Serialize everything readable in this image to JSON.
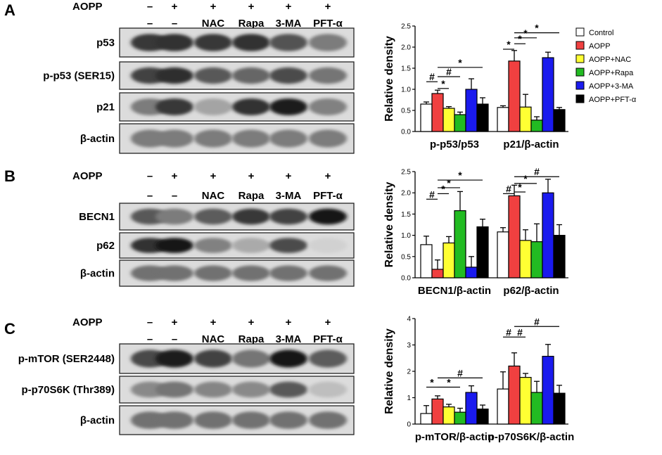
{
  "panels": [
    {
      "letter": "A",
      "treatment_label": "AOPP",
      "signs": [
        "–",
        "+",
        "+",
        "+",
        "+",
        "+"
      ],
      "subs": [
        "–",
        "–",
        "NAC",
        "Rapa",
        "3-MA",
        "PFT-α"
      ],
      "blots": [
        {
          "label": "p53",
          "bands": [
            0.78,
            0.8,
            0.78,
            0.8,
            0.65,
            0.45
          ]
        },
        {
          "label": "p-p53 (SER15)",
          "bands": [
            0.72,
            0.82,
            0.62,
            0.55,
            0.68,
            0.48
          ]
        },
        {
          "label": "p21",
          "bands": [
            0.45,
            0.78,
            0.25,
            0.8,
            0.92,
            0.42
          ]
        },
        {
          "label": "β-actin",
          "bands": [
            0.45,
            0.45,
            0.45,
            0.45,
            0.45,
            0.45
          ]
        }
      ]
    },
    {
      "letter": "B",
      "treatment_label": "AOPP",
      "signs": [
        "–",
        "+",
        "+",
        "+",
        "+",
        "+"
      ],
      "subs": [
        "–",
        "–",
        "NAC",
        "Rapa",
        "3-MA",
        "PFT-α"
      ],
      "blots": [
        {
          "label": "BECN1",
          "bands": [
            0.62,
            0.45,
            0.6,
            0.78,
            0.72,
            0.95
          ]
        },
        {
          "label": "p62",
          "bands": [
            0.8,
            0.95,
            0.42,
            0.22,
            0.68,
            0.03
          ]
        },
        {
          "label": "β-actin",
          "bands": [
            0.5,
            0.5,
            0.5,
            0.5,
            0.5,
            0.5
          ]
        }
      ]
    },
    {
      "letter": "C",
      "treatment_label": "AOPP",
      "signs": [
        "–",
        "+",
        "+",
        "+",
        "+",
        "+"
      ],
      "subs": [
        "–",
        "–",
        "NAC",
        "Rapa",
        "3-MA",
        "PFT-α"
      ],
      "blots": [
        {
          "label": "p-mTOR (SER2448)",
          "bands": [
            0.7,
            0.9,
            0.72,
            0.48,
            0.95,
            0.6
          ]
        },
        {
          "label": "p-p70S6K (Thr389)",
          "bands": [
            0.38,
            0.48,
            0.4,
            0.38,
            0.62,
            0.12
          ]
        },
        {
          "label": "β-actin",
          "bands": [
            0.5,
            0.5,
            0.5,
            0.5,
            0.5,
            0.5
          ]
        }
      ]
    }
  ],
  "legend": {
    "entries": [
      "Control",
      "AOPP",
      "AOPP+NAC",
      "AOPP+Rapa",
      "AOPP+3-MA",
      "AOPP+PFT-α"
    ],
    "colors": [
      "#ffffff",
      "#f04040",
      "#ffff33",
      "#22bb22",
      "#1a1aee",
      "#000000"
    ]
  },
  "chart_data": [
    {
      "type": "bar",
      "ylabel": "Relative density",
      "ylim": [
        0,
        2.5
      ],
      "yticks": [
        "0.0",
        "0.5",
        "1.0",
        "1.5",
        "2.0",
        "2.5"
      ],
      "groups": [
        {
          "label": "p-p53/p53",
          "values": [
            0.65,
            0.9,
            0.55,
            0.4,
            1.0,
            0.65
          ],
          "errors": [
            0.05,
            0.08,
            0.04,
            0.06,
            0.25,
            0.15
          ]
        },
        {
          "label": "p21/β-actin",
          "values": [
            0.57,
            1.67,
            0.58,
            0.27,
            1.75,
            0.52
          ],
          "errors": [
            0.04,
            0.25,
            0.3,
            0.08,
            0.13,
            0.05
          ]
        }
      ],
      "sig_marks": [
        {
          "group": 0,
          "from": 0,
          "to": 1,
          "symbol": "#",
          "level": 1.18
        },
        {
          "group": 0,
          "from": 1,
          "to": 2,
          "symbol": "*",
          "level": 1.02
        },
        {
          "group": 0,
          "from": 1,
          "to": 3,
          "symbol": "#",
          "level": 1.3
        },
        {
          "group": 0,
          "from": 1,
          "to": 5,
          "symbol": "*",
          "level": 1.52
        },
        {
          "group": 1,
          "from": 0,
          "to": 1,
          "symbol": "*",
          "level": 1.95
        },
        {
          "group": 1,
          "from": 1,
          "to": 2,
          "symbol": "*",
          "level": 2.08
        },
        {
          "group": 1,
          "from": 1,
          "to": 3,
          "symbol": "*",
          "level": 2.22
        },
        {
          "group": 1,
          "from": 1,
          "to": 5,
          "symbol": "*",
          "level": 2.34
        }
      ]
    },
    {
      "type": "bar",
      "ylabel": "Relative density",
      "ylim": [
        0,
        2.5
      ],
      "yticks": [
        "0.0",
        "0.5",
        "1.0",
        "1.5",
        "2.0",
        "2.5"
      ],
      "groups": [
        {
          "label": "BECN1/β-actin",
          "values": [
            0.78,
            0.2,
            0.82,
            1.58,
            0.25,
            1.2
          ],
          "errors": [
            0.2,
            0.22,
            0.15,
            0.45,
            0.25,
            0.18
          ]
        },
        {
          "label": "p62/β-actin",
          "values": [
            1.08,
            1.93,
            0.88,
            0.85,
            2.0,
            1.0
          ],
          "errors": [
            0.1,
            0.25,
            0.25,
            0.42,
            0.32,
            0.25
          ]
        }
      ],
      "sig_marks": [
        {
          "group": 0,
          "from": 0,
          "to": 1,
          "symbol": "#",
          "level": 1.85
        },
        {
          "group": 0,
          "from": 1,
          "to": 2,
          "symbol": "*",
          "level": 1.98
        },
        {
          "group": 0,
          "from": 1,
          "to": 3,
          "symbol": "*",
          "level": 2.12
        },
        {
          "group": 0,
          "from": 1,
          "to": 5,
          "symbol": "*",
          "level": 2.3
        },
        {
          "group": 1,
          "from": 0,
          "to": 1,
          "symbol": "#",
          "level": 1.98
        },
        {
          "group": 1,
          "from": 1,
          "to": 2,
          "symbol": "*",
          "level": 2.02
        },
        {
          "group": 1,
          "from": 1,
          "to": 3,
          "symbol": "*",
          "level": 2.22
        },
        {
          "group": 1,
          "from": 1,
          "to": 5,
          "symbol": "#",
          "level": 2.38
        }
      ]
    },
    {
      "type": "bar",
      "ylabel": "Relative density",
      "ylim": [
        0,
        4
      ],
      "yticks": [
        "0",
        "1",
        "2",
        "3",
        "4"
      ],
      "groups": [
        {
          "label": "p-mTOR/β-actin",
          "values": [
            0.4,
            0.95,
            0.65,
            0.45,
            1.2,
            0.57
          ],
          "errors": [
            0.3,
            0.12,
            0.1,
            0.15,
            0.25,
            0.15
          ]
        },
        {
          "label": "p-p70S6K/β-actin",
          "values": [
            1.33,
            2.2,
            1.77,
            1.2,
            2.57,
            1.17
          ],
          "errors": [
            0.65,
            0.5,
            0.15,
            0.42,
            0.45,
            0.3
          ]
        }
      ],
      "sig_marks": [
        {
          "group": 0,
          "from": 0,
          "to": 1,
          "symbol": "*",
          "level": 1.4
        },
        {
          "group": 0,
          "from": 1,
          "to": 3,
          "symbol": "*",
          "level": 1.4
        },
        {
          "group": 0,
          "from": 1,
          "to": 5,
          "symbol": "#",
          "level": 1.75
        },
        {
          "group": 1,
          "from": 0,
          "to": 1,
          "symbol": "#",
          "level": 3.3
        },
        {
          "group": 1,
          "from": 1,
          "to": 2,
          "symbol": "#",
          "level": 3.3
        },
        {
          "group": 1,
          "from": 1,
          "to": 5,
          "symbol": "#",
          "level": 3.7
        }
      ]
    }
  ]
}
